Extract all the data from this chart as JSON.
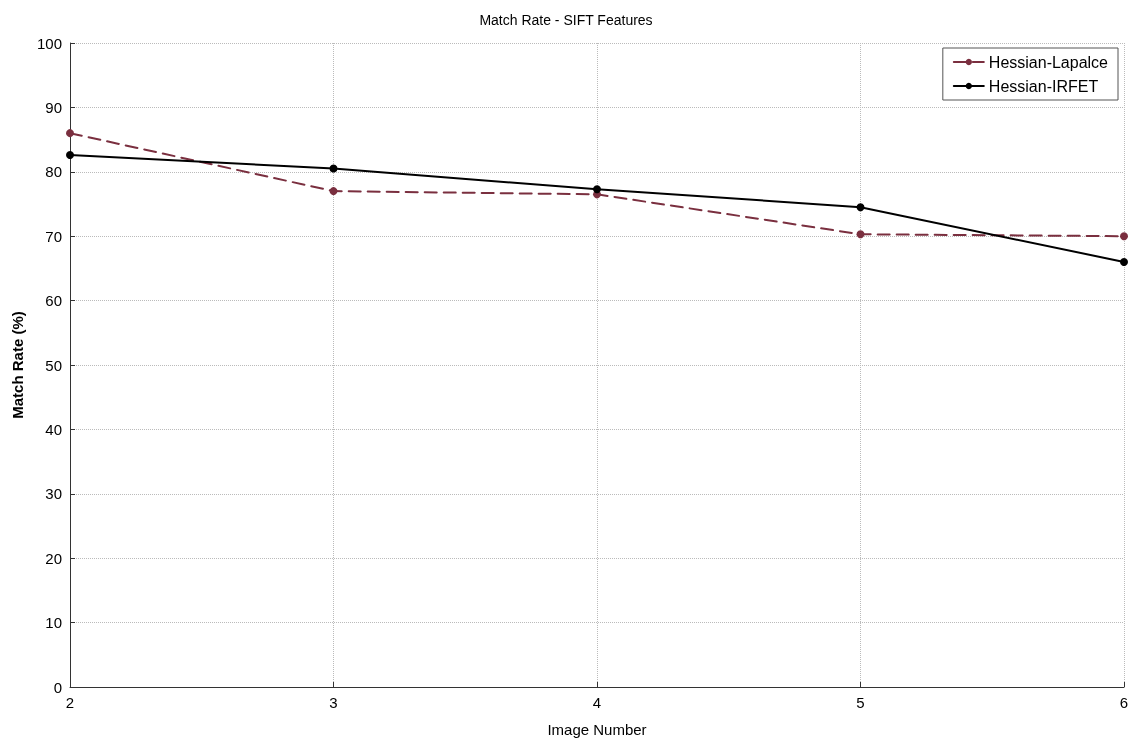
{
  "chart_data": {
    "type": "line",
    "title": "Match Rate - SIFT Features",
    "xlabel": "Image Number",
    "ylabel": "Match Rate (%)",
    "x": [
      2,
      3,
      4,
      5,
      6
    ],
    "series": [
      {
        "name": "Hessian-Lapalce",
        "color": "#7a2f3f",
        "line_style": "dashed",
        "values": [
          86,
          77,
          76.5,
          70.3,
          70
        ]
      },
      {
        "name": "Hessian-IRFET",
        "color": "#000000",
        "line_style": "solid",
        "values": [
          82.6,
          80.5,
          77.3,
          74.5,
          66
        ]
      }
    ],
    "xlim": [
      2,
      6
    ],
    "xticks": [
      2,
      3,
      4,
      5,
      6
    ],
    "ylim": [
      0,
      100
    ],
    "yticks": [
      0,
      10,
      20,
      30,
      40,
      50,
      60,
      70,
      80,
      90,
      100
    ],
    "grid": true,
    "legend": "top right",
    "marker": "circle"
  }
}
